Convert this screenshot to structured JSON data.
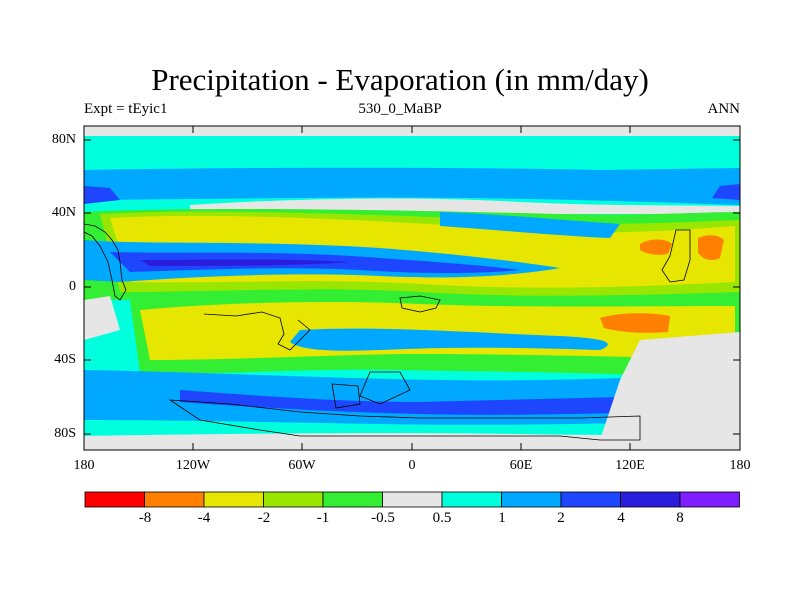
{
  "title": "Precipitation - Evaporation (in mm/day)",
  "subtitle_left": "Expt = tEyic1",
  "subtitle_center": "530_0_MaBP",
  "subtitle_right": "ANN",
  "lat_ticks": [
    "80N",
    "40N",
    "0",
    "40S",
    "80S"
  ],
  "lon_ticks": [
    "180",
    "120W",
    "60W",
    "0",
    "60E",
    "120E",
    "180"
  ],
  "colorbar": {
    "labels": [
      "-8",
      "-4",
      "-2",
      "-1",
      "-0.5",
      "0.5",
      "1",
      "2",
      "4",
      "8"
    ],
    "colors": [
      "#ff0000",
      "#ff7f00",
      "#e6e600",
      "#99e600",
      "#33ee33",
      "#e6e6e6",
      "#00ffdd",
      "#00a8ff",
      "#1e46ff",
      "#2a1edc",
      "#7f1eff"
    ]
  },
  "palette": {
    "ocean_teal": "#00ffdd",
    "light_blue": "#00a8ff",
    "mid_blue": "#1e46ff",
    "dark_blue": "#2a1edc",
    "yellow": "#e6e600",
    "yellow_green": "#99e600",
    "green": "#33ee33",
    "orange": "#ff7f00",
    "grey": "#e6e6e6"
  }
}
